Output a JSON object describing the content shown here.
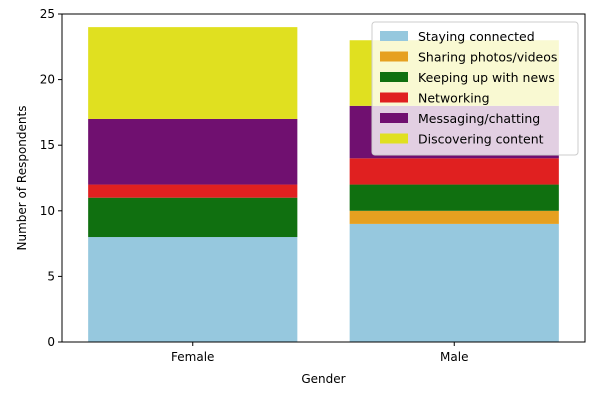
{
  "chart_data": {
    "type": "bar",
    "stacked": true,
    "categories": [
      "Female",
      "Male"
    ],
    "series": [
      {
        "name": "Staying connected",
        "color": "#96c8de",
        "values": [
          8,
          9
        ]
      },
      {
        "name": "Sharing photos/videos",
        "color": "#e6a020",
        "values": [
          0,
          1
        ]
      },
      {
        "name": "Keeping up with news",
        "color": "#107010",
        "values": [
          3,
          2
        ]
      },
      {
        "name": "Networking",
        "color": "#e02020",
        "values": [
          1,
          2
        ]
      },
      {
        "name": "Messaging/chatting",
        "color": "#701070",
        "values": [
          5,
          4
        ]
      },
      {
        "name": "Discovering content",
        "color": "#e0e020",
        "values": [
          7,
          5
        ]
      }
    ],
    "xlabel": "Gender",
    "ylabel": "Number of Respondents",
    "ylim": [
      0,
      25
    ],
    "yticks": [
      "0",
      "5",
      "10",
      "15",
      "20",
      "25"
    ],
    "grid": false,
    "legend": "top-right"
  }
}
